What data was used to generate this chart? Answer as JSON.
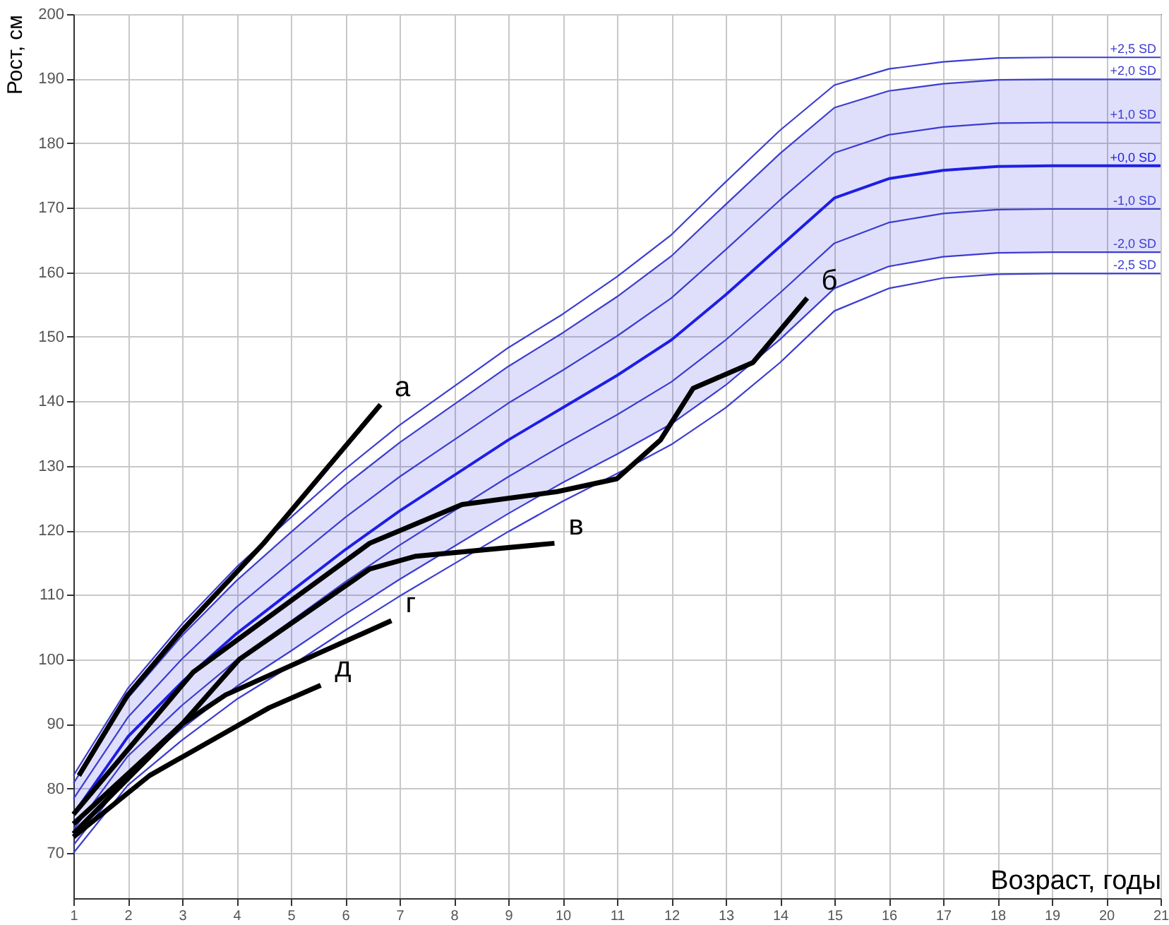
{
  "chart_data": {
    "type": "line",
    "xlabel": "Возраст, годы",
    "ylabel": "Рост, см",
    "xlim": [
      1,
      21
    ],
    "ylim": [
      63,
      200
    ],
    "xticks": [
      1,
      2,
      3,
      4,
      5,
      6,
      7,
      8,
      9,
      10,
      11,
      12,
      13,
      14,
      15,
      16,
      17,
      18,
      19,
      20,
      21
    ],
    "yticks": [
      70,
      80,
      90,
      100,
      110,
      120,
      130,
      140,
      150,
      160,
      170,
      180,
      190,
      200
    ],
    "grid": true,
    "line_style": "solid",
    "x": [
      1,
      2,
      3,
      4,
      5,
      6,
      7,
      8,
      9,
      10,
      11,
      12,
      13,
      14,
      15,
      16,
      17,
      18,
      19,
      20,
      21
    ],
    "series": [
      {
        "name": "+2,5 SD",
        "color": "#3c3cd2",
        "values": [
          82,
          95.5,
          105.5,
          114.3,
          122,
          129.5,
          136.3,
          142.3,
          148.3,
          153.5,
          159.3,
          165.8,
          174,
          182,
          189,
          191.5,
          192.6,
          193.2,
          193.3,
          193.3,
          193.3
        ]
      },
      {
        "name": "+2,0 SD",
        "color": "#3c3cd2",
        "values": [
          80.8,
          94,
          103.7,
          112.2,
          119.7,
          127,
          133.6,
          139.5,
          145.4,
          150.6,
          156.2,
          162.5,
          170.5,
          178.4,
          185.5,
          188.1,
          189.2,
          189.8,
          189.9,
          189.9,
          189.9
        ]
      },
      {
        "name": "+1,0 SD",
        "color": "#3c3cd2",
        "values": [
          78.4,
          91,
          100.1,
          108.1,
          115.1,
          122,
          128.3,
          134,
          139.7,
          144.8,
          150.1,
          156,
          163.5,
          171.2,
          178.5,
          181.3,
          182.5,
          183.1,
          183.2,
          183.2,
          183.2
        ]
      },
      {
        "name": "+0,0 SD",
        "color": "#1e1ee6",
        "values": [
          76,
          88,
          96.5,
          104,
          110.5,
          117,
          123,
          128.5,
          134,
          139,
          144,
          149.5,
          156.5,
          164,
          171.5,
          174.5,
          175.8,
          176.4,
          176.5,
          176.5,
          176.5
        ],
        "lower": [
          71.2,
          82,
          89.3,
          95.8,
          101.3,
          107,
          112.4,
          117.5,
          122.6,
          127.4,
          131.8,
          136.5,
          142.5,
          149.6,
          157.5,
          160.9,
          162.4,
          163,
          163.1,
          163.1,
          163.1
        ],
        "upper": [
          80.8,
          94,
          103.7,
          112.2,
          119.7,
          127,
          133.6,
          139.5,
          145.4,
          150.6,
          156.2,
          162.5,
          170.5,
          178.4,
          185.5,
          188.1,
          189.2,
          189.8,
          189.9,
          189.9,
          189.9
        ]
      },
      {
        "name": "-1,0 SD",
        "color": "#3c3cd2",
        "values": [
          73.6,
          85,
          92.9,
          99.9,
          105.9,
          112,
          117.7,
          123,
          128.3,
          133.2,
          137.9,
          143,
          149.5,
          156.8,
          164.5,
          167.7,
          169.1,
          169.7,
          169.8,
          169.8,
          169.8
        ]
      },
      {
        "name": "-2,0 SD",
        "color": "#3c3cd2",
        "values": [
          71.2,
          82,
          89.3,
          95.8,
          101.3,
          107,
          112.4,
          117.5,
          122.6,
          127.4,
          131.8,
          136.5,
          142.5,
          149.6,
          157.5,
          160.9,
          162.4,
          163,
          163.1,
          163.1,
          163.1
        ]
      },
      {
        "name": "-2,5 SD",
        "color": "#3c3cd2",
        "values": [
          70,
          80.5,
          87.5,
          93.8,
          99,
          104.5,
          109.8,
          114.8,
          119.8,
          124.5,
          128.8,
          133.3,
          139,
          146,
          154,
          157.5,
          159.1,
          159.7,
          159.8,
          159.8,
          159.8
        ]
      },
      {
        "name": "а",
        "color": "#000000",
        "x": [
          1.1,
          2,
          3,
          4.5,
          6.65
        ],
        "values": [
          82,
          94.5,
          104.5,
          118,
          139.5
        ]
      },
      {
        "name": "б",
        "color": "#000000",
        "x": [
          1,
          3.2,
          6.45,
          8.15,
          9.9,
          11,
          11.8,
          12.4,
          13.5,
          14.5
        ],
        "values": [
          76,
          98,
          118,
          124,
          126,
          128,
          134,
          142,
          146,
          156
        ]
      },
      {
        "name": "в",
        "color": "#000000",
        "x": [
          1,
          3,
          4.05,
          6.45,
          7.3,
          9.85
        ],
        "values": [
          74.5,
          90,
          100,
          114,
          116,
          118
        ]
      },
      {
        "name": "г",
        "color": "#000000",
        "x": [
          1,
          3,
          3.8,
          6.85
        ],
        "values": [
          73,
          90,
          94.5,
          106
        ]
      },
      {
        "name": "д",
        "color": "#000000",
        "x": [
          1,
          2.4,
          4.6,
          5.55
        ],
        "values": [
          72.5,
          82,
          92.5,
          96
        ]
      }
    ]
  }
}
